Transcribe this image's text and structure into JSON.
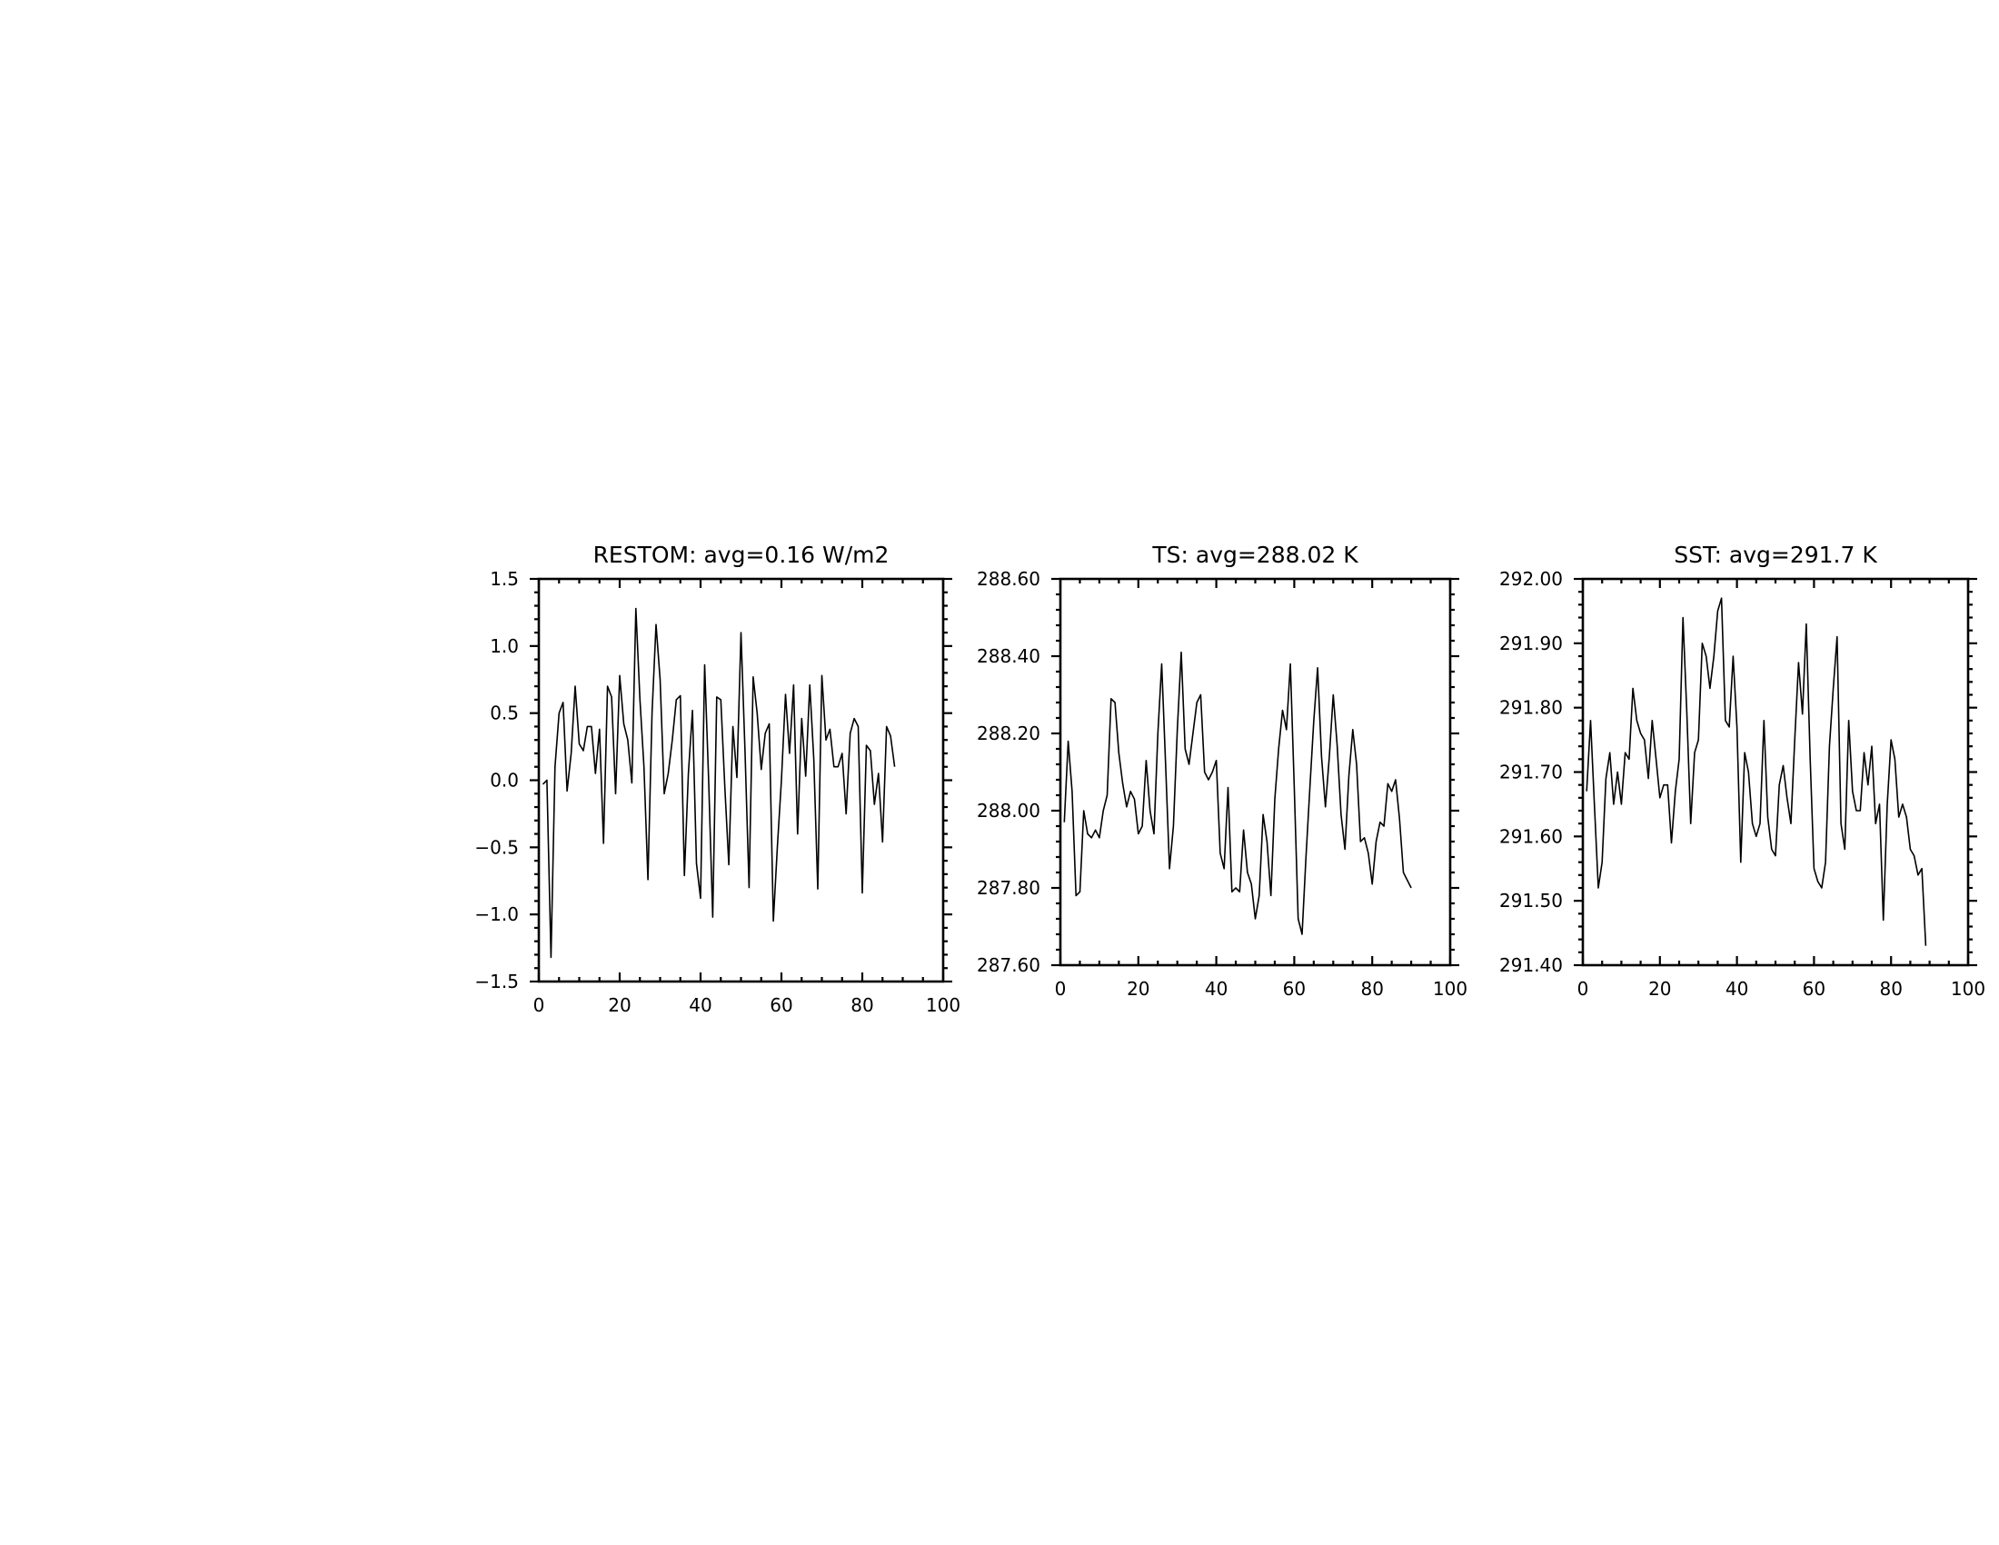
{
  "chart_data": [
    {
      "type": "line",
      "title": "RESTOM: avg=0.16 W/m2",
      "xlim": [
        0,
        100
      ],
      "ylim": [
        -1.5,
        1.5
      ],
      "x_ticks": [
        0,
        20,
        40,
        60,
        80,
        100
      ],
      "y_ticks": [
        -1.5,
        -1.0,
        -0.5,
        0.0,
        0.5,
        1.0,
        1.5
      ],
      "x_tick_labels": [
        "0",
        "20",
        "40",
        "60",
        "80",
        "100"
      ],
      "y_tick_labels": [
        "−1.5",
        "−1.0",
        "−0.5",
        "0.0",
        "0.5",
        "1.0",
        "1.5"
      ],
      "grid": false,
      "series": [
        {
          "x_start": 1,
          "x_step": 1,
          "values": [
            -0.03,
            0.0,
            -1.32,
            0.1,
            0.5,
            0.58,
            -0.08,
            0.2,
            0.7,
            0.27,
            0.22,
            0.4,
            0.4,
            0.05,
            0.38,
            -0.47,
            0.7,
            0.62,
            -0.1,
            0.78,
            0.42,
            0.3,
            -0.02,
            1.28,
            0.6,
            0.1,
            -0.74,
            0.5,
            1.16,
            0.75,
            -0.1,
            0.05,
            0.3,
            0.6,
            0.63,
            -0.71,
            0.05,
            0.52,
            -0.62,
            -0.88,
            0.86,
            0.0,
            -1.02,
            0.62,
            0.6,
            -0.05,
            -0.63,
            0.4,
            0.02,
            1.1,
            0.2,
            -0.8,
            0.77,
            0.5,
            0.08,
            0.35,
            0.42,
            -1.05,
            -0.5,
            0.0,
            0.64,
            0.2,
            0.71,
            -0.4,
            0.46,
            0.03,
            0.71,
            0.16,
            -0.81,
            0.78,
            0.3,
            0.38,
            0.1,
            0.1,
            0.2,
            -0.25,
            0.35,
            0.46,
            0.4,
            -0.84,
            0.26,
            0.22,
            -0.18,
            0.05,
            -0.46,
            0.4,
            0.33,
            0.1
          ]
        }
      ]
    },
    {
      "type": "line",
      "title": "TS: avg=288.02 K",
      "xlim": [
        0,
        100
      ],
      "ylim": [
        287.6,
        288.6
      ],
      "x_ticks": [
        0,
        20,
        40,
        60,
        80,
        100
      ],
      "y_ticks": [
        287.6,
        287.8,
        288.0,
        288.2,
        288.4,
        288.6
      ],
      "x_tick_labels": [
        "0",
        "20",
        "40",
        "60",
        "80",
        "100"
      ],
      "y_tick_labels": [
        "287.60",
        "287.80",
        "288.00",
        "288.20",
        "288.40",
        "288.60"
      ],
      "grid": false,
      "series": [
        {
          "x_start": 1,
          "x_step": 1,
          "values": [
            287.97,
            288.18,
            288.05,
            287.78,
            287.79,
            288.0,
            287.94,
            287.93,
            287.95,
            287.93,
            288.0,
            288.04,
            288.29,
            288.28,
            288.15,
            288.07,
            288.01,
            288.05,
            288.03,
            287.94,
            287.96,
            288.13,
            288.0,
            287.94,
            288.2,
            288.38,
            288.12,
            287.85,
            287.96,
            288.21,
            288.41,
            288.16,
            288.12,
            288.2,
            288.28,
            288.3,
            288.1,
            288.08,
            288.1,
            288.13,
            287.89,
            287.85,
            288.06,
            287.79,
            287.8,
            287.79,
            287.95,
            287.84,
            287.81,
            287.72,
            287.78,
            287.99,
            287.92,
            287.78,
            288.03,
            288.16,
            288.26,
            288.21,
            288.38,
            288.06,
            287.72,
            287.68,
            287.88,
            288.06,
            288.23,
            288.37,
            288.14,
            288.01,
            288.14,
            288.3,
            288.17,
            287.99,
            287.9,
            288.09,
            288.21,
            288.12,
            287.92,
            287.93,
            287.89,
            287.81,
            287.92,
            287.97,
            287.96,
            288.07,
            288.05,
            288.08,
            287.98,
            287.84,
            287.82,
            287.8
          ]
        }
      ]
    },
    {
      "type": "line",
      "title": "SST: avg=291.7 K",
      "xlim": [
        0,
        100
      ],
      "ylim": [
        291.4,
        292.0
      ],
      "x_ticks": [
        0,
        20,
        40,
        60,
        80,
        100
      ],
      "y_ticks": [
        291.4,
        291.5,
        291.6,
        291.7,
        291.8,
        291.9,
        292.0
      ],
      "x_tick_labels": [
        "0",
        "20",
        "40",
        "60",
        "80",
        "100"
      ],
      "y_tick_labels": [
        "291.40",
        "291.50",
        "291.60",
        "291.70",
        "291.80",
        "291.90",
        "292.00"
      ],
      "grid": false,
      "series": [
        {
          "x_start": 1,
          "x_step": 1,
          "values": [
            291.67,
            291.78,
            291.65,
            291.52,
            291.56,
            291.69,
            291.73,
            291.65,
            291.7,
            291.65,
            291.73,
            291.72,
            291.83,
            291.78,
            291.76,
            291.75,
            291.69,
            291.78,
            291.72,
            291.66,
            291.68,
            291.68,
            291.59,
            291.67,
            291.72,
            291.94,
            291.79,
            291.62,
            291.73,
            291.75,
            291.9,
            291.88,
            291.83,
            291.88,
            291.95,
            291.97,
            291.78,
            291.77,
            291.88,
            291.77,
            291.56,
            291.73,
            291.7,
            291.62,
            291.6,
            291.62,
            291.78,
            291.63,
            291.58,
            291.57,
            291.68,
            291.71,
            291.66,
            291.62,
            291.75,
            291.87,
            291.79,
            291.93,
            291.72,
            291.55,
            291.53,
            291.52,
            291.56,
            291.74,
            291.83,
            291.91,
            291.62,
            291.58,
            291.78,
            291.67,
            291.64,
            291.64,
            291.73,
            291.68,
            291.74,
            291.62,
            291.65,
            291.47,
            291.65,
            291.75,
            291.72,
            291.63,
            291.65,
            291.63,
            291.58,
            291.57,
            291.54,
            291.55,
            291.43
          ]
        }
      ]
    }
  ]
}
